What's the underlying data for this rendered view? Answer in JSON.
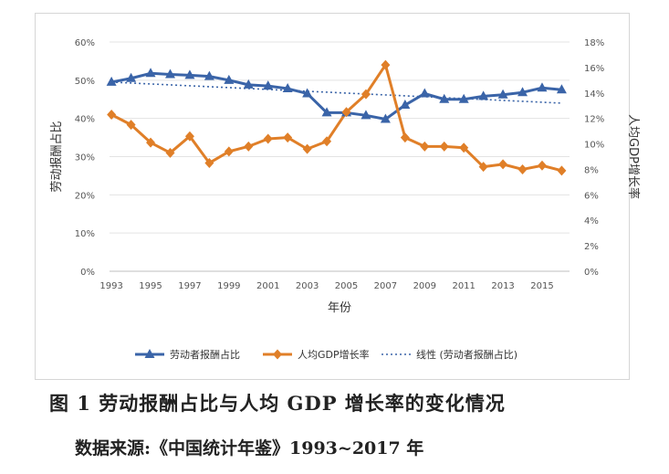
{
  "caption": "图 1   劳动报酬占比与人均 GDP 增长率的变化情况",
  "source": "数据来源:《中国统计年鉴》1993~2017 年",
  "chart_data": {
    "type": "line",
    "xlabel": "年份",
    "ylabel_left": "劳动报酬占比",
    "ylabel_right": "人均GDP增长率",
    "x": [
      1993,
      1994,
      1995,
      1996,
      1997,
      1998,
      1999,
      2000,
      2001,
      2002,
      2003,
      2004,
      2005,
      2006,
      2007,
      2008,
      2009,
      2010,
      2011,
      2012,
      2013,
      2014,
      2015,
      2016
    ],
    "x_tick_labels": [
      "1993",
      "1995",
      "1997",
      "1999",
      "2001",
      "2003",
      "2005",
      "2007",
      "2009",
      "2011",
      "2013",
      "2015"
    ],
    "x_ticks": [
      1993,
      1995,
      1997,
      1999,
      2001,
      2003,
      2005,
      2007,
      2009,
      2011,
      2013,
      2015
    ],
    "ylim_left": [
      0,
      60
    ],
    "yticks_left": [
      "0%",
      "10%",
      "20%",
      "30%",
      "40%",
      "50%",
      "60%"
    ],
    "ylim_right": [
      0,
      18
    ],
    "yticks_right": [
      "0%",
      "2%",
      "4%",
      "6%",
      "8%",
      "10%",
      "12%",
      "14%",
      "16%",
      "18%"
    ],
    "legend_position": "bottom",
    "series": [
      {
        "name": "劳动者报酬占比",
        "axis": "left",
        "color": "#3a64a8",
        "marker": "triangle",
        "values": [
          49.5,
          50.5,
          51.8,
          51.5,
          51.3,
          51.0,
          50.0,
          48.8,
          48.5,
          47.8,
          46.5,
          41.5,
          41.5,
          40.8,
          39.8,
          43.5,
          46.5,
          45.0,
          45.0,
          45.8,
          46.2,
          46.8,
          48.0,
          47.5
        ]
      },
      {
        "name": "人均GDP增长率",
        "axis": "right",
        "color": "#e07f28",
        "marker": "diamond",
        "values": [
          12.3,
          11.5,
          10.1,
          9.3,
          10.6,
          8.5,
          9.4,
          9.8,
          10.4,
          10.5,
          9.6,
          10.2,
          12.5,
          13.9,
          16.2,
          10.5,
          9.8,
          9.8,
          9.7,
          8.2,
          8.4,
          8.0,
          8.3,
          7.9
        ]
      },
      {
        "name": "线性 (劳动者报酬占比)",
        "axis": "left",
        "color": "#3a64a8",
        "style": "dotted",
        "values": [
          49.5,
          44.0
        ],
        "x": [
          1993,
          2016
        ]
      }
    ]
  }
}
